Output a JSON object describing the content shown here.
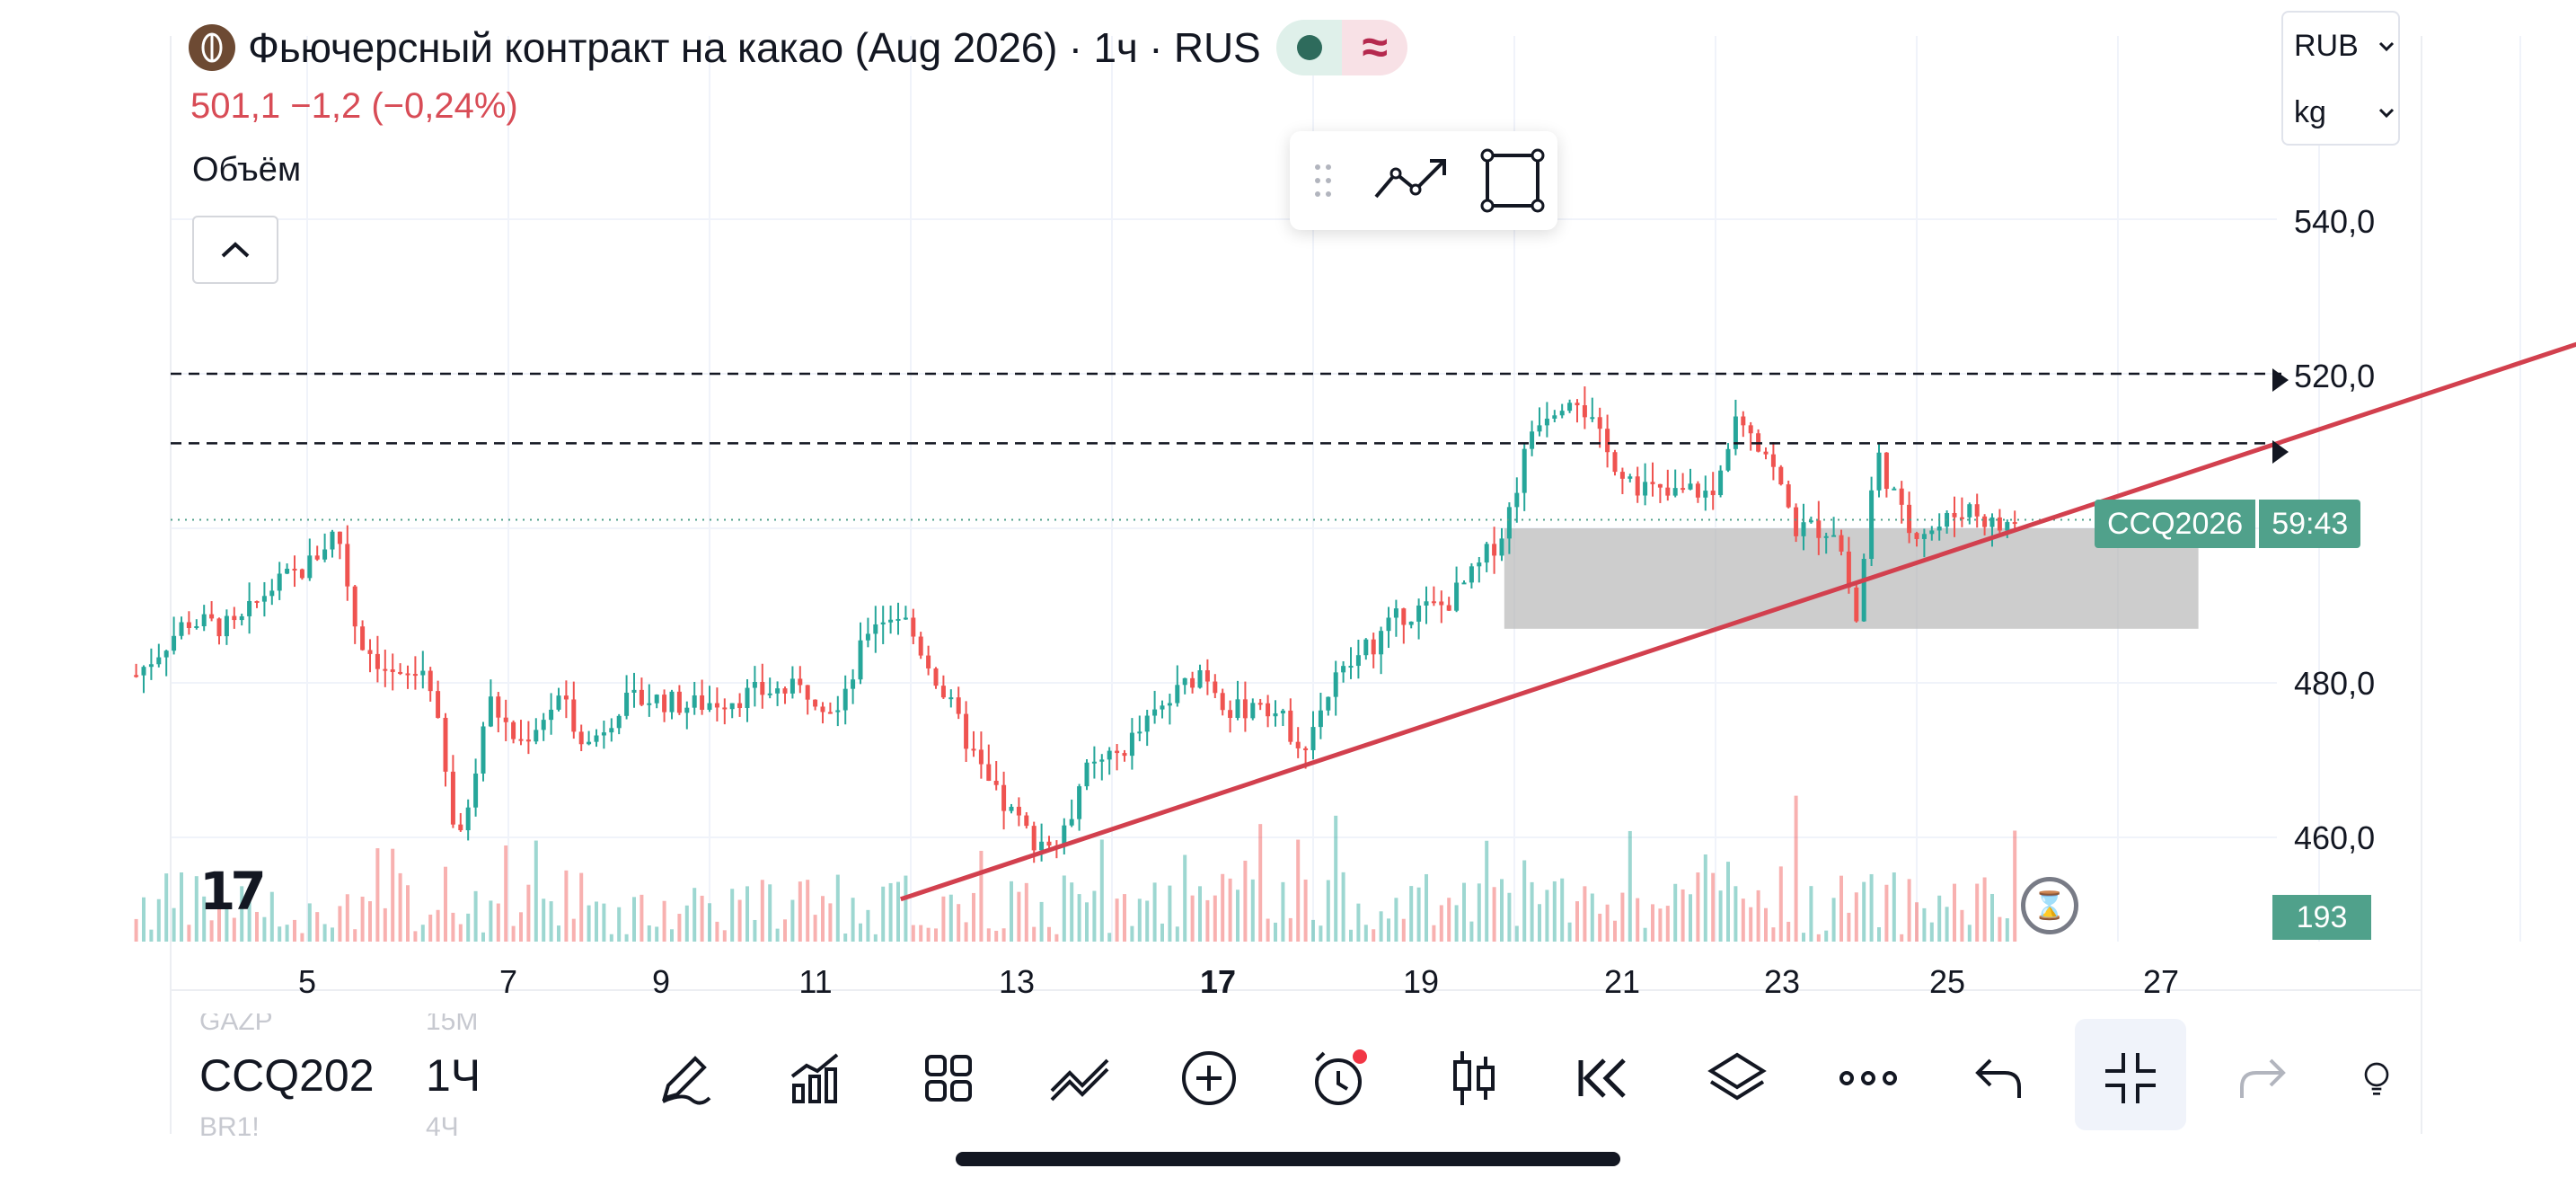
{
  "header": {
    "title": "Фьючерсный контракт на какао (Aug 2026) · 1ч · RUS",
    "price": "501,1",
    "change": "−1,2",
    "change_pct": "(−0,24%)",
    "volume_label": "Объём"
  },
  "settings": {
    "currency": "RUB",
    "unit": "kg"
  },
  "price_axis": {
    "labels": [
      "540,0",
      "520,0",
      "480,0",
      "460,0"
    ]
  },
  "time_axis": {
    "labels": [
      "5",
      "7",
      "9",
      "11",
      "13",
      "17",
      "19",
      "21",
      "23",
      "25",
      "27"
    ],
    "bold_label": "17"
  },
  "tags": {
    "symbol": "CCQ2026",
    "countdown": "59:43",
    "volume_value": "193"
  },
  "bottom_toolbar": {
    "symbol_current": "CCQ202",
    "symbol_prev": "GAZP",
    "symbol_next": "BR1!",
    "timeframe_current": "1Ч",
    "timeframe_prev": "15М",
    "timeframe_next": "4Ч",
    "icons": [
      "pen-icon",
      "indicators-icon",
      "layouts-icon",
      "trend-icon",
      "add-icon",
      "alert-icon",
      "candles-icon",
      "replay-icon",
      "layers-icon",
      "more-icon",
      "undo-icon",
      "fullscreen-exit-icon",
      "redo-icon",
      "ideas-icon"
    ]
  },
  "colors": {
    "up": "#26a69a",
    "down": "#ef5350",
    "trendline": "#d2404e",
    "accent": "#50a18b"
  },
  "chart_data": {
    "type": "candlestick",
    "x_ticks": [
      "5",
      "7",
      "9",
      "11",
      "13",
      "17",
      "19",
      "21",
      "23",
      "25",
      "27"
    ],
    "ylim": [
      452,
      548
    ],
    "y_ticks": [
      540,
      520,
      480,
      460
    ],
    "last_price": 501.1,
    "horizontal_levels": [
      520,
      511
    ],
    "range_zone": {
      "from_x": 16.9,
      "to_x": 23.8,
      "low": 487,
      "high": 500
    },
    "trendline": {
      "start": {
        "x": 10.9,
        "y": 452
      },
      "end": {
        "x": 27.6,
        "y": 524
      }
    },
    "close_path": [
      [
        3.3,
        481
      ],
      [
        3.8,
        488
      ],
      [
        4.3,
        487
      ],
      [
        4.6,
        492
      ],
      [
        5.0,
        495
      ],
      [
        5.3,
        500
      ],
      [
        5.5,
        486
      ],
      [
        5.9,
        480
      ],
      [
        6.2,
        482
      ],
      [
        6.5,
        458
      ],
      [
        6.8,
        478
      ],
      [
        7.1,
        472
      ],
      [
        7.5,
        478
      ],
      [
        7.8,
        472
      ],
      [
        8.1,
        477
      ],
      [
        8.4,
        478
      ],
      [
        8.8,
        477
      ],
      [
        9.2,
        478
      ],
      [
        9.6,
        479
      ],
      [
        10.0,
        479
      ],
      [
        10.3,
        476
      ],
      [
        10.6,
        488
      ],
      [
        10.9,
        489
      ],
      [
        11.2,
        482
      ],
      [
        11.5,
        474
      ],
      [
        11.8,
        466
      ],
      [
        12.2,
        460
      ],
      [
        12.5,
        459
      ],
      [
        12.7,
        468
      ],
      [
        13.0,
        470
      ],
      [
        13.3,
        474
      ],
      [
        13.6,
        478
      ],
      [
        13.9,
        482
      ],
      [
        14.2,
        476
      ],
      [
        14.5,
        478
      ],
      [
        14.9,
        472
      ],
      [
        15.2,
        480
      ],
      [
        15.5,
        484
      ],
      [
        15.9,
        489
      ],
      [
        16.3,
        490
      ],
      [
        16.6,
        494
      ],
      [
        16.9,
        500
      ],
      [
        17.2,
        514
      ],
      [
        17.6,
        518
      ],
      [
        17.9,
        510
      ],
      [
        18.2,
        506
      ],
      [
        18.5,
        504
      ],
      [
        18.8,
        505
      ],
      [
        19.0,
        504
      ],
      [
        19.2,
        516
      ],
      [
        19.5,
        510
      ],
      [
        19.8,
        500
      ],
      [
        20.2,
        500
      ],
      [
        20.4,
        488
      ],
      [
        20.6,
        510
      ],
      [
        20.9,
        500
      ],
      [
        21.2,
        500
      ],
      [
        21.5,
        503
      ],
      [
        21.8,
        500
      ],
      [
        22.0,
        501.1
      ]
    ]
  }
}
